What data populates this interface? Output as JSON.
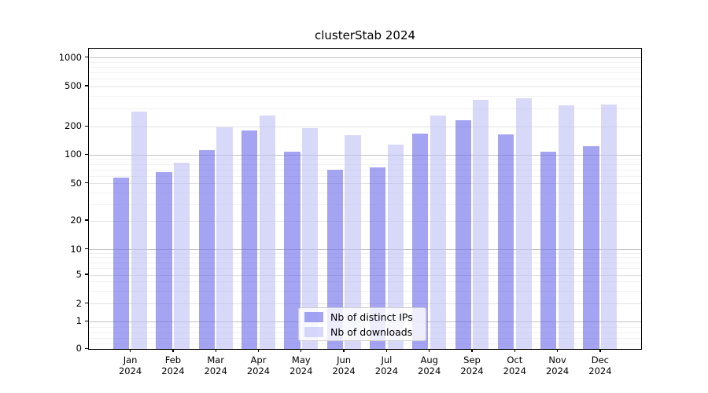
{
  "title": "clusterStab 2024",
  "chart_data": {
    "type": "bar",
    "title": "clusterStab 2024",
    "categories": [
      "Jan 2024",
      "Feb 2024",
      "Mar 2024",
      "Apr 2024",
      "May 2024",
      "Jun 2024",
      "Jul 2024",
      "Aug 2024",
      "Sep 2024",
      "Oct 2024",
      "Nov 2024",
      "Dec 2024"
    ],
    "series": [
      {
        "name": "Nb of distinct IPs",
        "color": "rgba(104,104,233,0.6)",
        "color_hex_approx": "#a4a4f1",
        "values": [
          57,
          66,
          112,
          180,
          107,
          69,
          73,
          168,
          228,
          165,
          108,
          124
        ]
      },
      {
        "name": "Nb of downloads",
        "color": "rgba(190,190,245,0.6)",
        "color_hex_approx": "#d8d8f8",
        "values": [
          280,
          83,
          196,
          258,
          190,
          162,
          129,
          258,
          365,
          380,
          320,
          330
        ]
      }
    ],
    "xlabel": "",
    "ylabel": "",
    "yscale": "symlog",
    "ylim": [
      0,
      1000
    ],
    "ytick_values": [
      0,
      1,
      2,
      5,
      10,
      20,
      50,
      100,
      200,
      500,
      1000
    ],
    "grid": true,
    "minor_gridlines": true,
    "legend_position": "lower center"
  }
}
